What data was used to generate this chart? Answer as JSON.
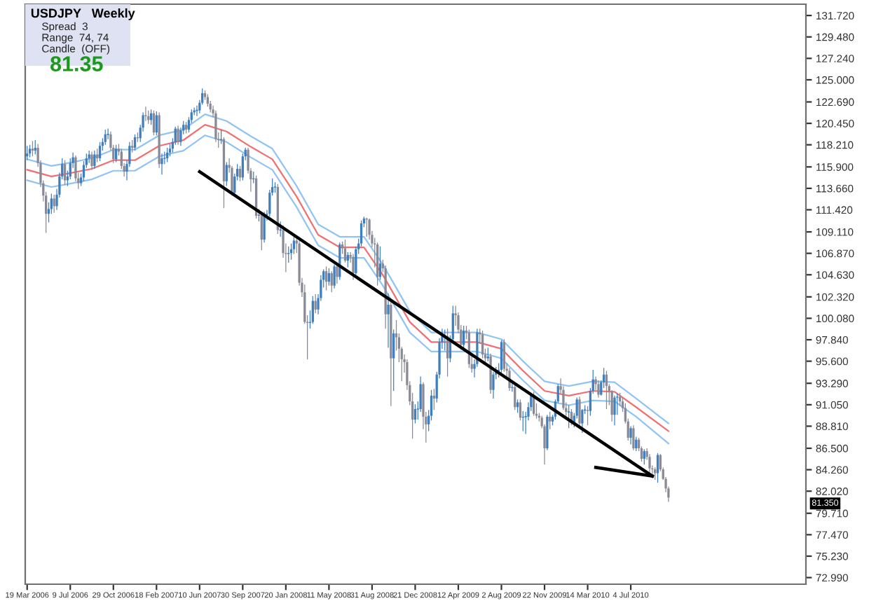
{
  "chart_data": {
    "type": "candlestick",
    "title": "USDJPY",
    "subtitle": "Weekly",
    "annotations": [
      "Spread  3",
      "Range  74, 74",
      "Candle  (OFF)",
      "81.35",
      "81.350"
    ],
    "colors": [
      "#3f7fc0",
      "#3f7fc0",
      "#8a8a96",
      "#3f7fc0",
      "#8a8a96",
      "#8a8a96",
      "#8a8a96",
      "#8a8a96",
      "#3f7fc0",
      "#3f7fc0",
      "#8a8a96",
      "#3f7fc0",
      "#3f7fc0",
      "#3f7fc0",
      "#8a8a96",
      "#3f7fc0",
      "#3f7fc0",
      "#3f7fc0",
      "#8a8a96",
      "#8a8a96",
      "#3f7fc0",
      "#3f7fc0",
      "#3f7fc0",
      "#3f7fc0",
      "#8a8a96",
      "#3f7fc0",
      "#8a8a96",
      "#3f7fc0",
      "#3f7fc0",
      "#3f7fc0",
      "#3f7fc0",
      "#8a8a96",
      "#8a8a96",
      "#3f7fc0",
      "#8a8a96",
      "#8a8a96",
      "#8a8a96",
      "#3f7fc0",
      "#3f7fc0",
      "#8a8a96",
      "#3f7fc0",
      "#8a8a96",
      "#3f7fc0",
      "#3f7fc0",
      "#8a8a96",
      "#8a8a96",
      "#3f7fc0",
      "#8a8a96",
      "#3f7fc0",
      "#8a8a96",
      "#3f7fc0",
      "#3f7fc0",
      "#3f7fc0",
      "#3f7fc0",
      "#3f7fc0",
      "#3f7fc0",
      "#8a8a96",
      "#3f7fc0",
      "#3f7fc0",
      "#8a8a96",
      "#3f7fc0",
      "#3f7fc0",
      "#3f7fc0",
      "#3f7fc0",
      "#3f7fc0",
      "#3f7fc0",
      "#8a8a96",
      "#8a8a96",
      "#8a8a96",
      "#8a8a96",
      "#8a8a96",
      "#8a8a96",
      "#3f7fc0",
      "#8a8a96",
      "#3f7fc0",
      "#8a8a96",
      "#8a8a96",
      "#3f7fc0",
      "#3f7fc0",
      "#8a8a96",
      "#3f7fc0",
      "#3f7fc0",
      "#8a8a96",
      "#8a8a96",
      "#3f7fc0",
      "#8a8a96",
      "#3f7fc0",
      "#8a8a96",
      "#3f7fc0",
      "#3f7fc0",
      "#3f7fc0",
      "#3f7fc0",
      "#3f7fc0",
      "#8a8a96",
      "#3f7fc0",
      "#8a8a96",
      "#8a8a96",
      "#3f7fc0",
      "#3f7fc0",
      "#3f7fc0",
      "#8a8a96",
      "#8a8a96",
      "#8a8a96",
      "#8a8a96",
      "#8a8a96",
      "#3f7fc0",
      "#3f7fc0",
      "#8a8a96",
      "#3f7fc0",
      "#3f7fc0",
      "#3f7fc0",
      "#8a8a96",
      "#3f7fc0",
      "#8a8a96",
      "#3f7fc0",
      "#8a8a96",
      "#3f7fc0",
      "#8a8a96",
      "#8a8a96",
      "#3f7fc0",
      "#8a8a96",
      "#8a8a96",
      "#3f7fc0",
      "#3f7fc0",
      "#3f7fc0",
      "#3f7fc0",
      "#8a8a96",
      "#8a8a96",
      "#8a8a96",
      "#8a8a96",
      "#8a8a96",
      "#3f7fc0",
      "#8a8a96",
      "#8a8a96",
      "#3f7fc0",
      "#8a8a96",
      "#3f7fc0",
      "#8a8a96",
      "#8a8a96",
      "#8a8a96",
      "#8a8a96",
      "#8a8a96",
      "#8a8a96",
      "#8a8a96",
      "#3f7fc0",
      "#3f7fc0",
      "#3f7fc0",
      "#8a8a96",
      "#8a8a96",
      "#3f7fc0",
      "#3f7fc0",
      "#8a8a96",
      "#3f7fc0",
      "#3f7fc0",
      "#3f7fc0",
      "#3f7fc0",
      "#8a8a96",
      "#3f7fc0",
      "#3f7fc0",
      "#8a8a96",
      "#8a8a96",
      "#8a8a96",
      "#3f7fc0",
      "#8a8a96",
      "#8a8a96",
      "#8a8a96",
      "#3f7fc0",
      "#3f7fc0",
      "#8a8a96",
      "#8a8a96",
      "#8a8a96",
      "#3f7fc0",
      "#8a8a96",
      "#3f7fc0",
      "#3f7fc0",
      "#3f7fc0",
      "#3f7fc0",
      "#8a8a96",
      "#8a8a96",
      "#8a8a96",
      "#3f7fc0",
      "#8a8a96",
      "#3f7fc0",
      "#8a8a96",
      "#3f7fc0",
      "#3f7fc0",
      "#3f7fc0",
      "#3f7fc0",
      "#8a8a96",
      "#8a8a96",
      "#8a8a96",
      "#8a8a96",
      "#8a8a96",
      "#3f7fc0",
      "#8a8a96",
      "#3f7fc0",
      "#3f7fc0",
      "#3f7fc0",
      "#8a8a96",
      "#8a8a96",
      "#8a8a96",
      "#3f7fc0",
      "#8a8a96",
      "#3f7fc0",
      "#3f7fc0",
      "#8a8a96",
      "#3f7fc0",
      "#3f7fc0",
      "#8a8a96",
      "#3f7fc0",
      "#3f7fc0",
      "#8a8a96",
      "#8a8a96",
      "#3f7fc0",
      "#3f7fc0",
      "#8a8a96",
      "#8a8a96",
      "#8a8a96",
      "#3f7fc0",
      "#3f7fc0",
      "#8a8a96",
      "#8a8a96",
      "#8a8a96",
      "#8a8a96",
      "#3f7fc0",
      "#8a8a96",
      "#3f7fc0",
      "#8a8a96",
      "#8a8a96",
      "#3f7fc0",
      "#8a8a96",
      "#8a8a96",
      "#8a8a96",
      "#8a8a96",
      "#3f7fc0",
      "#8a8a96",
      "#8a8a96",
      "#8a8a96",
      "#8a8a96"
    ],
    "x": [
      "2006-03-19",
      "2006-03-26",
      "2006-04-02",
      "2006-04-09",
      "2006-04-16",
      "2006-04-23",
      "2006-04-30",
      "2006-05-07",
      "2006-05-14",
      "2006-05-21",
      "2006-05-28",
      "2006-06-04",
      "2006-06-11",
      "2006-06-18",
      "2006-06-25",
      "2006-07-02",
      "2006-07-09",
      "2006-07-16",
      "2006-07-23",
      "2006-07-30",
      "2006-08-06",
      "2006-08-13",
      "2006-08-20",
      "2006-08-27",
      "2006-09-03",
      "2006-09-10",
      "2006-09-17",
      "2006-09-24",
      "2006-10-01",
      "2006-10-08",
      "2006-10-15",
      "2006-10-22",
      "2006-10-29",
      "2006-11-05",
      "2006-11-12",
      "2006-11-19",
      "2006-11-26",
      "2006-12-03",
      "2006-12-10",
      "2006-12-17",
      "2006-12-24",
      "2006-12-31",
      "2007-01-07",
      "2007-01-14",
      "2007-01-21",
      "2007-01-28",
      "2007-02-04",
      "2007-02-11",
      "2007-02-18",
      "2007-02-25",
      "2007-03-04",
      "2007-03-11",
      "2007-03-18",
      "2007-03-25",
      "2007-04-01",
      "2007-04-08",
      "2007-04-15",
      "2007-04-22",
      "2007-04-29",
      "2007-05-06",
      "2007-05-13",
      "2007-05-20",
      "2007-05-27",
      "2007-06-03",
      "2007-06-10",
      "2007-06-17",
      "2007-06-24",
      "2007-07-01",
      "2007-07-08",
      "2007-07-15",
      "2007-07-22",
      "2007-07-29",
      "2007-08-05",
      "2007-08-12",
      "2007-08-19",
      "2007-08-26",
      "2007-09-02",
      "2007-09-09",
      "2007-09-16",
      "2007-09-23",
      "2007-09-30",
      "2007-10-07",
      "2007-10-14",
      "2007-10-21",
      "2007-10-28",
      "2007-11-04",
      "2007-11-11",
      "2007-11-18",
      "2007-11-25",
      "2007-12-02",
      "2007-12-09",
      "2007-12-16",
      "2007-12-23",
      "2007-12-30",
      "2008-01-06",
      "2008-01-13",
      "2008-01-20",
      "2008-01-27",
      "2008-02-03",
      "2008-02-10",
      "2008-02-17",
      "2008-02-24",
      "2008-03-02",
      "2008-03-09",
      "2008-03-16",
      "2008-03-23",
      "2008-03-30",
      "2008-04-06",
      "2008-04-13",
      "2008-04-20",
      "2008-04-27",
      "2008-05-04",
      "2008-05-11",
      "2008-05-18",
      "2008-05-25",
      "2008-06-01",
      "2008-06-08",
      "2008-06-15",
      "2008-06-22",
      "2008-06-29",
      "2008-07-06",
      "2008-07-13",
      "2008-07-20",
      "2008-07-27",
      "2008-08-03",
      "2008-08-10",
      "2008-08-17",
      "2008-08-24",
      "2008-08-31",
      "2008-09-07",
      "2008-09-14",
      "2008-09-21",
      "2008-09-28",
      "2008-10-05",
      "2008-10-12",
      "2008-10-19",
      "2008-10-26",
      "2008-11-02",
      "2008-11-09",
      "2008-11-16",
      "2008-11-23",
      "2008-11-30",
      "2008-12-07",
      "2008-12-14",
      "2008-12-21",
      "2008-12-28",
      "2009-01-04",
      "2009-01-11",
      "2009-01-18",
      "2009-01-25",
      "2009-02-01",
      "2009-02-08",
      "2009-02-15",
      "2009-02-22",
      "2009-03-01",
      "2009-03-08",
      "2009-03-15",
      "2009-03-22",
      "2009-03-29",
      "2009-04-05",
      "2009-04-12",
      "2009-04-19",
      "2009-04-26",
      "2009-05-03",
      "2009-05-10",
      "2009-05-17",
      "2009-05-24",
      "2009-05-31",
      "2009-06-07",
      "2009-06-14",
      "2009-06-21",
      "2009-06-28",
      "2009-07-05",
      "2009-07-12",
      "2009-07-19",
      "2009-07-26",
      "2009-08-02",
      "2009-08-09",
      "2009-08-16",
      "2009-08-23",
      "2009-08-30",
      "2009-09-06",
      "2009-09-13",
      "2009-09-20",
      "2009-09-27",
      "2009-10-04",
      "2009-10-11",
      "2009-10-18",
      "2009-10-25",
      "2009-11-01",
      "2009-11-08",
      "2009-11-15",
      "2009-11-22",
      "2009-11-29",
      "2009-12-06",
      "2009-12-13",
      "2009-12-20",
      "2009-12-27",
      "2010-01-03",
      "2010-01-10",
      "2010-01-17",
      "2010-01-24",
      "2010-01-31",
      "2010-02-07",
      "2010-02-14",
      "2010-02-21",
      "2010-02-28",
      "2010-03-07",
      "2010-03-14",
      "2010-03-21",
      "2010-03-28",
      "2010-04-04",
      "2010-04-11",
      "2010-04-18",
      "2010-04-25",
      "2010-05-02",
      "2010-05-09",
      "2010-05-16",
      "2010-05-23",
      "2010-05-30",
      "2010-06-06",
      "2010-06-13",
      "2010-06-20",
      "2010-06-27",
      "2010-07-04",
      "2010-07-11",
      "2010-07-18",
      "2010-07-25",
      "2010-08-01",
      "2010-08-08",
      "2010-08-15",
      "2010-08-22",
      "2010-08-29",
      "2010-09-05",
      "2010-09-12",
      "2010-09-19",
      "2010-09-26",
      "2010-10-03",
      "2010-10-10"
    ],
    "ohlc": [
      [
        117.0,
        118.1,
        116.6,
        117.3
      ],
      [
        117.3,
        118.2,
        116.9,
        117.8
      ],
      [
        117.8,
        118.6,
        117.0,
        117.6
      ],
      [
        117.6,
        118.7,
        117.2,
        117.9
      ],
      [
        117.9,
        118.3,
        115.9,
        116.3
      ],
      [
        116.3,
        116.6,
        113.8,
        114.2
      ],
      [
        114.2,
        114.5,
        112.3,
        112.9
      ],
      [
        112.9,
        113.3,
        109.0,
        111.0
      ],
      [
        111.0,
        112.2,
        110.1,
        111.5
      ],
      [
        111.5,
        113.1,
        111.0,
        112.6
      ],
      [
        112.6,
        113.0,
        111.1,
        111.8
      ],
      [
        111.8,
        113.6,
        111.4,
        113.0
      ],
      [
        113.0,
        115.3,
        112.7,
        114.9
      ],
      [
        114.9,
        116.8,
        114.6,
        116.2
      ],
      [
        116.2,
        116.6,
        114.0,
        114.5
      ],
      [
        114.5,
        115.5,
        113.9,
        114.9
      ],
      [
        114.9,
        116.8,
        114.6,
        116.3
      ],
      [
        116.3,
        117.4,
        115.8,
        116.9
      ],
      [
        116.9,
        117.1,
        114.4,
        114.7
      ],
      [
        114.7,
        115.3,
        113.6,
        114.2
      ],
      [
        114.2,
        115.2,
        113.9,
        114.8
      ],
      [
        114.8,
        116.5,
        114.4,
        116.1
      ],
      [
        116.1,
        117.3,
        115.8,
        116.8
      ],
      [
        116.8,
        117.6,
        116.3,
        117.2
      ],
      [
        117.2,
        117.5,
        115.6,
        116.0
      ],
      [
        116.0,
        117.6,
        115.7,
        117.2
      ],
      [
        117.2,
        117.8,
        116.4,
        116.8
      ],
      [
        116.8,
        118.5,
        116.5,
        118.1
      ],
      [
        118.1,
        118.9,
        117.6,
        118.5
      ],
      [
        118.5,
        119.8,
        118.2,
        119.3
      ],
      [
        119.3,
        119.9,
        118.8,
        119.3
      ],
      [
        119.3,
        119.6,
        117.6,
        117.9
      ],
      [
        117.9,
        118.2,
        116.3,
        116.7
      ],
      [
        116.7,
        118.2,
        116.4,
        117.8
      ],
      [
        117.8,
        118.3,
        117.1,
        117.5
      ],
      [
        117.5,
        117.8,
        115.7,
        116.0
      ],
      [
        116.0,
        116.3,
        114.9,
        115.4
      ],
      [
        115.4,
        116.6,
        114.5,
        116.2
      ],
      [
        116.2,
        118.5,
        115.9,
        118.1
      ],
      [
        118.1,
        118.7,
        117.4,
        117.9
      ],
      [
        117.9,
        119.3,
        117.6,
        119.0
      ],
      [
        119.0,
        119.5,
        118.5,
        118.9
      ],
      [
        118.9,
        120.3,
        118.5,
        120.0
      ],
      [
        120.0,
        121.6,
        119.6,
        121.3
      ],
      [
        121.3,
        122.2,
        120.7,
        121.2
      ],
      [
        121.2,
        121.8,
        120.4,
        120.8
      ],
      [
        120.8,
        121.9,
        120.3,
        121.5
      ],
      [
        121.5,
        121.8,
        119.2,
        119.5
      ],
      [
        119.5,
        121.7,
        119.2,
        121.3
      ],
      [
        121.3,
        121.6,
        115.8,
        116.2
      ],
      [
        116.2,
        117.3,
        115.1,
        116.8
      ],
      [
        116.8,
        117.5,
        116.2,
        116.8
      ],
      [
        116.8,
        117.9,
        116.4,
        117.4
      ],
      [
        117.4,
        118.3,
        117.0,
        117.8
      ],
      [
        117.8,
        118.9,
        117.4,
        118.5
      ],
      [
        118.5,
        120.1,
        118.2,
        119.9
      ],
      [
        119.9,
        120.2,
        118.2,
        118.5
      ],
      [
        118.5,
        120.0,
        118.1,
        119.7
      ],
      [
        119.7,
        120.7,
        119.3,
        120.3
      ],
      [
        120.3,
        120.6,
        119.4,
        119.8
      ],
      [
        119.8,
        121.1,
        119.5,
        120.8
      ],
      [
        120.8,
        121.9,
        120.5,
        121.6
      ],
      [
        121.6,
        122.1,
        121.3,
        121.8
      ],
      [
        121.8,
        122.3,
        121.2,
        121.8
      ],
      [
        121.8,
        122.9,
        121.5,
        122.6
      ],
      [
        122.6,
        124.1,
        122.4,
        123.6
      ],
      [
        123.6,
        123.9,
        122.9,
        123.2
      ],
      [
        123.2,
        123.5,
        122.2,
        122.5
      ],
      [
        122.5,
        122.8,
        121.6,
        121.9
      ],
      [
        121.9,
        122.3,
        121.1,
        121.5
      ],
      [
        121.5,
        121.8,
        118.5,
        118.8
      ],
      [
        118.8,
        119.5,
        117.9,
        118.7
      ],
      [
        118.7,
        119.8,
        118.3,
        118.8
      ],
      [
        118.8,
        119.0,
        111.6,
        114.4
      ],
      [
        114.4,
        116.4,
        113.9,
        116.1
      ],
      [
        116.1,
        116.8,
        115.3,
        115.8
      ],
      [
        115.8,
        116.0,
        112.9,
        113.2
      ],
      [
        113.2,
        115.2,
        112.9,
        114.9
      ],
      [
        114.9,
        116.2,
        114.5,
        115.7
      ],
      [
        115.7,
        116.0,
        114.4,
        114.8
      ],
      [
        114.8,
        117.3,
        114.5,
        117.0
      ],
      [
        117.0,
        117.9,
        116.6,
        117.7
      ],
      [
        117.7,
        117.9,
        115.2,
        115.5
      ],
      [
        115.5,
        115.8,
        113.3,
        114.6
      ],
      [
        114.6,
        115.4,
        114.2,
        114.7
      ],
      [
        114.7,
        115.0,
        110.5,
        110.8
      ],
      [
        110.8,
        111.5,
        110.2,
        110.9
      ],
      [
        110.9,
        111.2,
        107.2,
        108.3
      ],
      [
        108.3,
        111.2,
        108.0,
        110.9
      ],
      [
        110.9,
        111.4,
        110.3,
        111.0
      ],
      [
        111.0,
        113.5,
        110.7,
        113.2
      ],
      [
        113.2,
        114.7,
        112.9,
        113.8
      ],
      [
        113.8,
        114.3,
        113.2,
        113.8
      ],
      [
        113.8,
        114.1,
        108.9,
        109.3
      ],
      [
        109.3,
        110.2,
        108.6,
        109.3
      ],
      [
        109.3,
        109.8,
        106.4,
        106.9
      ],
      [
        106.9,
        107.9,
        104.9,
        106.8
      ],
      [
        106.8,
        107.6,
        105.9,
        106.9
      ],
      [
        106.9,
        107.9,
        106.2,
        107.3
      ],
      [
        107.3,
        108.6,
        106.8,
        108.2
      ],
      [
        108.2,
        108.4,
        106.9,
        107.9
      ],
      [
        107.9,
        108.2,
        103.5,
        103.8
      ],
      [
        103.8,
        104.3,
        102.3,
        102.8
      ],
      [
        102.8,
        103.6,
        99.5,
        99.7
      ],
      [
        99.7,
        100.4,
        95.8,
        99.6
      ],
      [
        99.6,
        100.9,
        99.0,
        99.7
      ],
      [
        99.7,
        102.4,
        99.5,
        101.9
      ],
      [
        101.9,
        102.6,
        100.6,
        101.0
      ],
      [
        101.0,
        102.6,
        100.5,
        102.2
      ],
      [
        102.2,
        104.6,
        101.9,
        104.1
      ],
      [
        104.1,
        105.2,
        103.3,
        105.0
      ],
      [
        105.0,
        105.5,
        103.0,
        103.9
      ],
      [
        103.9,
        105.3,
        103.5,
        104.8
      ],
      [
        104.8,
        105.0,
        102.8,
        103.5
      ],
      [
        103.5,
        105.7,
        103.2,
        105.5
      ],
      [
        105.5,
        105.8,
        103.7,
        104.4
      ],
      [
        104.4,
        108.0,
        104.1,
        107.8
      ],
      [
        107.8,
        108.1,
        106.8,
        107.4
      ],
      [
        107.4,
        108.3,
        105.9,
        106.1
      ],
      [
        106.1,
        107.0,
        105.4,
        106.7
      ],
      [
        106.7,
        107.0,
        105.9,
        106.5
      ],
      [
        106.5,
        106.8,
        104.1,
        104.8
      ],
      [
        104.8,
        107.6,
        104.6,
        107.3
      ],
      [
        107.3,
        108.4,
        106.8,
        107.9
      ],
      [
        107.9,
        110.3,
        107.6,
        110.0
      ],
      [
        110.0,
        110.7,
        109.6,
        110.5
      ],
      [
        110.5,
        110.6,
        108.6,
        110.4
      ],
      [
        110.4,
        110.5,
        108.3,
        108.8
      ],
      [
        108.8,
        109.2,
        107.5,
        107.9
      ],
      [
        107.9,
        108.5,
        105.4,
        107.8
      ],
      [
        107.8,
        108.0,
        103.5,
        104.4
      ],
      [
        104.4,
        107.6,
        104.1,
        105.8
      ],
      [
        105.8,
        106.2,
        104.9,
        105.3
      ],
      [
        105.3,
        105.6,
        99.0,
        100.5
      ],
      [
        100.5,
        102.7,
        97.0,
        101.5
      ],
      [
        101.5,
        101.8,
        90.9,
        95.9
      ],
      [
        95.9,
        98.9,
        92.5,
        98.5
      ],
      [
        98.5,
        99.9,
        96.7,
        98.1
      ],
      [
        98.1,
        98.5,
        95.5,
        96.9
      ],
      [
        96.9,
        97.1,
        93.5,
        95.8
      ],
      [
        95.8,
        96.3,
        94.4,
        95.5
      ],
      [
        95.5,
        95.8,
        92.6,
        93.1
      ],
      [
        93.1,
        93.5,
        91.0,
        91.4
      ],
      [
        91.4,
        92.3,
        87.5,
        89.5
      ],
      [
        89.5,
        91.1,
        89.1,
        90.6
      ],
      [
        90.6,
        91.4,
        89.5,
        90.6
      ],
      [
        90.6,
        94.0,
        90.3,
        93.2
      ],
      [
        93.2,
        93.4,
        88.5,
        89.8
      ],
      [
        89.8,
        90.3,
        87.1,
        89.0
      ],
      [
        89.0,
        90.5,
        88.3,
        89.9
      ],
      [
        89.9,
        92.6,
        89.4,
        92.0
      ],
      [
        92.0,
        92.7,
        90.5,
        91.7
      ],
      [
        91.7,
        94.5,
        91.3,
        94.2
      ],
      [
        94.2,
        98.0,
        93.8,
        97.6
      ],
      [
        97.6,
        99.0,
        96.9,
        98.2
      ],
      [
        98.2,
        98.9,
        96.7,
        98.2
      ],
      [
        98.2,
        99.0,
        94.0,
        95.9
      ],
      [
        95.9,
        98.3,
        95.5,
        97.9
      ],
      [
        97.9,
        101.4,
        97.5,
        100.6
      ],
      [
        100.6,
        101.4,
        99.3,
        100.4
      ],
      [
        100.4,
        100.7,
        98.5,
        98.9
      ],
      [
        98.9,
        99.4,
        96.8,
        97.3
      ],
      [
        97.3,
        99.3,
        96.9,
        98.8
      ],
      [
        98.8,
        99.3,
        97.9,
        98.6
      ],
      [
        98.6,
        98.9,
        94.9,
        95.3
      ],
      [
        95.3,
        96.2,
        94.4,
        94.8
      ],
      [
        94.8,
        95.8,
        93.9,
        95.3
      ],
      [
        95.3,
        99.0,
        95.0,
        98.6
      ],
      [
        98.6,
        99.0,
        97.4,
        98.4
      ],
      [
        98.4,
        98.8,
        95.9,
        96.3
      ],
      [
        96.3,
        96.9,
        95.5,
        95.9
      ],
      [
        95.9,
        97.0,
        95.6,
        96.1
      ],
      [
        96.1,
        96.4,
        92.2,
        92.6
      ],
      [
        92.6,
        94.5,
        91.7,
        94.2
      ],
      [
        94.2,
        95.0,
        93.7,
        94.6
      ],
      [
        94.6,
        95.4,
        93.9,
        94.7
      ],
      [
        94.7,
        97.8,
        94.4,
        97.6
      ],
      [
        97.6,
        97.9,
        94.5,
        94.8
      ],
      [
        94.8,
        95.4,
        93.9,
        94.6
      ],
      [
        94.6,
        94.9,
        92.5,
        92.8
      ],
      [
        92.8,
        93.5,
        92.4,
        92.9
      ],
      [
        92.9,
        93.3,
        90.5,
        90.8
      ],
      [
        90.8,
        91.6,
        90.2,
        91.3
      ],
      [
        91.3,
        91.6,
        89.4,
        89.7
      ],
      [
        89.7,
        90.4,
        88.3,
        89.8
      ],
      [
        89.8,
        90.3,
        88.0,
        89.8
      ],
      [
        89.8,
        91.3,
        89.4,
        90.8
      ],
      [
        90.8,
        92.3,
        90.4,
        92.1
      ],
      [
        92.1,
        92.4,
        89.9,
        90.1
      ],
      [
        90.1,
        91.2,
        89.6,
        89.9
      ],
      [
        89.9,
        90.2,
        89.3,
        89.7
      ],
      [
        89.7,
        89.9,
        88.6,
        88.8
      ],
      [
        88.8,
        89.0,
        84.8,
        86.5
      ],
      [
        86.5,
        90.0,
        86.3,
        89.8
      ],
      [
        89.8,
        90.3,
        88.5,
        89.3
      ],
      [
        89.3,
        90.0,
        88.9,
        89.8
      ],
      [
        89.8,
        91.6,
        89.5,
        91.4
      ],
      [
        91.4,
        93.2,
        91.2,
        93.0
      ],
      [
        93.0,
        93.8,
        92.2,
        92.6
      ],
      [
        92.6,
        93.0,
        90.5,
        90.7
      ],
      [
        90.7,
        91.3,
        89.9,
        90.3
      ],
      [
        90.3,
        91.0,
        88.6,
        90.3
      ],
      [
        90.3,
        90.6,
        88.9,
        89.2
      ],
      [
        89.2,
        90.2,
        88.7,
        89.9
      ],
      [
        89.9,
        91.8,
        89.6,
        91.6
      ],
      [
        91.6,
        91.9,
        88.8,
        89.1
      ],
      [
        89.1,
        90.6,
        88.1,
        90.5
      ],
      [
        90.5,
        91.0,
        90.1,
        90.5
      ],
      [
        90.5,
        90.9,
        88.9,
        90.4
      ],
      [
        90.4,
        92.8,
        89.9,
        92.5
      ],
      [
        92.5,
        94.7,
        92.2,
        93.7
      ],
      [
        93.7,
        94.0,
        92.6,
        93.2
      ],
      [
        93.2,
        93.6,
        91.8,
        92.1
      ],
      [
        92.1,
        93.6,
        92.0,
        93.4
      ],
      [
        93.4,
        94.9,
        92.8,
        94.2
      ],
      [
        94.2,
        94.6,
        90.6,
        93.0
      ],
      [
        93.0,
        93.2,
        91.0,
        92.5
      ],
      [
        92.5,
        92.6,
        89.3,
        90.0
      ],
      [
        90.0,
        92.0,
        88.9,
        91.8
      ],
      [
        91.8,
        92.2,
        90.0,
        91.9
      ],
      [
        91.9,
        92.3,
        90.9,
        91.4
      ],
      [
        91.4,
        91.8,
        90.3,
        90.7
      ],
      [
        90.7,
        91.2,
        89.1,
        89.3
      ],
      [
        89.3,
        89.6,
        87.3,
        87.6
      ],
      [
        87.6,
        88.8,
        86.9,
        88.6
      ],
      [
        88.6,
        88.9,
        86.3,
        86.5
      ],
      [
        86.5,
        87.7,
        86.2,
        87.4
      ],
      [
        87.4,
        87.6,
        86.2,
        86.5
      ],
      [
        86.5,
        86.7,
        85.1,
        85.4
      ],
      [
        85.4,
        86.4,
        84.8,
        86.2
      ],
      [
        86.2,
        86.5,
        85.3,
        85.6
      ],
      [
        85.6,
        85.9,
        83.6,
        84.4
      ],
      [
        84.4,
        84.7,
        83.8,
        84.3
      ],
      [
        84.3,
        84.5,
        83.2,
        83.9
      ],
      [
        83.9,
        86.0,
        82.9,
        85.8
      ],
      [
        85.8,
        85.9,
        84.1,
        84.3
      ],
      [
        84.3,
        84.5,
        83.2,
        83.3
      ],
      [
        83.3,
        83.5,
        81.9,
        82.3
      ],
      [
        82.3,
        82.5,
        80.9,
        81.35
      ]
    ],
    "series": [
      {
        "type": "line",
        "color": "#8fc4f5",
        "x": [
          "2006-03-19",
          "2006-05-21",
          "2006-07-02",
          "2006-09-03",
          "2006-10-29",
          "2006-12-24",
          "2007-02-25",
          "2007-04-29",
          "2007-06-24",
          "2007-08-19",
          "2007-10-21",
          "2007-12-16",
          "2008-02-17",
          "2008-04-13",
          "2008-06-08",
          "2008-08-10",
          "2008-09-28",
          "2008-12-07",
          "2009-02-01",
          "2009-04-05",
          "2009-05-31",
          "2009-08-02",
          "2009-09-27",
          "2009-11-22",
          "2010-01-24",
          "2010-03-28",
          "2010-05-23",
          "2010-07-18",
          "2010-10-10"
        ],
        "values": [
          116.7,
          116.0,
          116.3,
          116.8,
          117.7,
          117.7,
          119.2,
          119.8,
          121.4,
          120.7,
          119.1,
          117.8,
          113.9,
          109.9,
          108.6,
          108.6,
          105.7,
          100.8,
          98.6,
          98.6,
          98.6,
          97.9,
          95.6,
          93.5,
          93.0,
          93.5,
          93.4,
          91.7,
          89.1
        ]
      },
      {
        "type": "line",
        "color": "#f07070",
        "x": [
          "2006-03-19",
          "2006-05-21",
          "2006-07-02",
          "2006-09-03",
          "2006-10-29",
          "2006-12-24",
          "2007-02-25",
          "2007-04-29",
          "2007-06-24",
          "2007-08-19",
          "2007-10-21",
          "2007-12-16",
          "2008-02-17",
          "2008-04-13",
          "2008-06-08",
          "2008-08-10",
          "2008-09-28",
          "2008-12-07",
          "2009-02-01",
          "2009-04-05",
          "2009-05-31",
          "2009-08-02",
          "2009-09-27",
          "2009-11-22",
          "2010-01-24",
          "2010-03-28",
          "2010-05-23",
          "2010-07-18",
          "2010-10-10"
        ],
        "values": [
          115.6,
          114.9,
          115.2,
          115.7,
          116.6,
          116.6,
          118.1,
          118.7,
          120.3,
          119.6,
          118.0,
          116.7,
          112.8,
          108.8,
          107.5,
          107.5,
          104.6,
          99.7,
          97.6,
          97.6,
          97.6,
          96.9,
          94.6,
          92.5,
          92.0,
          92.5,
          92.4,
          90.8,
          88.3
        ]
      },
      {
        "type": "line",
        "color": "#8fc4f5",
        "x": [
          "2006-03-19",
          "2006-05-21",
          "2006-07-02",
          "2006-09-03",
          "2006-10-29",
          "2006-12-24",
          "2007-02-25",
          "2007-04-29",
          "2007-06-24",
          "2007-08-19",
          "2007-10-21",
          "2007-12-16",
          "2008-02-17",
          "2008-04-13",
          "2008-06-08",
          "2008-08-10",
          "2008-09-28",
          "2008-12-07",
          "2009-02-01",
          "2009-04-05",
          "2009-05-31",
          "2009-08-02",
          "2009-09-27",
          "2009-11-22",
          "2010-01-24",
          "2010-03-28",
          "2010-05-23",
          "2010-07-18",
          "2010-10-10"
        ],
        "values": [
          114.5,
          113.8,
          114.1,
          114.6,
          115.5,
          115.5,
          117.0,
          117.6,
          119.2,
          118.5,
          116.9,
          115.6,
          111.7,
          107.7,
          106.4,
          106.4,
          103.5,
          98.6,
          96.6,
          96.6,
          96.6,
          95.9,
          93.6,
          91.5,
          91.0,
          91.5,
          91.4,
          89.8,
          87.0
        ]
      },
      {
        "type": "line",
        "color": "#000000",
        "x": [
          "2007-06-10",
          "2010-08-29"
        ],
        "values": [
          115.4,
          83.6
        ]
      },
      {
        "type": "line",
        "color": "#000000",
        "x": [
          "2010-04-04",
          "2010-08-29"
        ],
        "values": [
          84.5,
          83.6
        ]
      }
    ],
    "xlim": [
      "2006-03-14",
      "2011-10-02"
    ],
    "xticks": [
      {
        "value": "2006-03-19",
        "label": "19 Mar 2006"
      },
      {
        "value": "2006-07-09",
        "label": "9 Jul 2006"
      },
      {
        "value": "2006-10-29",
        "label": "29 Oct 2006"
      },
      {
        "value": "2007-02-18",
        "label": "18 Feb 2007"
      },
      {
        "value": "2007-06-10",
        "label": "10 Jun 2007"
      },
      {
        "value": "2007-09-30",
        "label": "30 Sep 2007"
      },
      {
        "value": "2008-01-20",
        "label": "20 Jan 2008"
      },
      {
        "value": "2008-05-11",
        "label": "11 May 2008"
      },
      {
        "value": "2008-08-31",
        "label": "31 Aug 2008"
      },
      {
        "value": "2008-12-21",
        "label": "21 Dec 2008"
      },
      {
        "value": "2009-04-12",
        "label": "12 Apr 2009"
      },
      {
        "value": "2009-08-02",
        "label": "2 Aug 2009"
      },
      {
        "value": "2009-11-22",
        "label": "22 Nov 2009"
      },
      {
        "value": "2010-03-14",
        "label": "14 Mar 2010"
      },
      {
        "value": "2010-07-04",
        "label": "4 Jul 2010"
      }
    ],
    "ylim": [
      72.3,
      132.9
    ],
    "yticks": [
      {
        "value": 131.72,
        "label": "131.720"
      },
      {
        "value": 129.48,
        "label": "129.480"
      },
      {
        "value": 127.24,
        "label": "127.240"
      },
      {
        "value": 125.0,
        "label": "125.000"
      },
      {
        "value": 122.69,
        "label": "122.690"
      },
      {
        "value": 120.45,
        "label": "120.450"
      },
      {
        "value": 118.21,
        "label": "118.210"
      },
      {
        "value": 115.9,
        "label": "115.900"
      },
      {
        "value": 113.66,
        "label": "113.660"
      },
      {
        "value": 111.42,
        "label": "111.420"
      },
      {
        "value": 109.11,
        "label": "109.110"
      },
      {
        "value": 106.87,
        "label": "106.870"
      },
      {
        "value": 104.63,
        "label": "104.630"
      },
      {
        "value": 102.32,
        "label": "102.320"
      },
      {
        "value": 100.08,
        "label": "100.080"
      },
      {
        "value": 97.84,
        "label": "97.840"
      },
      {
        "value": 95.6,
        "label": "95.600"
      },
      {
        "value": 93.29,
        "label": "93.290"
      },
      {
        "value": 91.05,
        "label": "91.050"
      },
      {
        "value": 88.81,
        "label": "88.810"
      },
      {
        "value": 86.5,
        "label": "86.500"
      },
      {
        "value": 84.26,
        "label": "84.260"
      },
      {
        "value": 82.02,
        "label": "82.020"
      },
      {
        "value": 79.71,
        "label": "79.710"
      },
      {
        "value": 77.47,
        "label": "77.470"
      },
      {
        "value": 75.23,
        "label": "75.230"
      },
      {
        "value": 72.99,
        "label": "72.990"
      }
    ]
  }
}
